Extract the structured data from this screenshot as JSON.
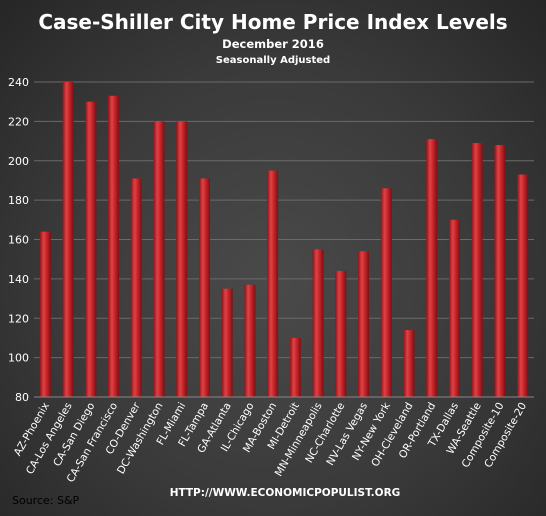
{
  "chart_data": {
    "type": "bar",
    "title": "Case-Shiller  City  Home  Price  Index  Levels",
    "subtitle": "December  2016",
    "subtitle2": "Seasonally  Adjusted",
    "xlabel": "",
    "ylabel": "",
    "ylim": [
      80,
      240
    ],
    "yticks": [
      80,
      100,
      120,
      140,
      160,
      180,
      200,
      220,
      240
    ],
    "grid": true,
    "legend": "none",
    "bar_color": "#c0262b",
    "categories": [
      "AZ-Phoenix",
      "CA-Los Angeles",
      "CA-San Diego",
      "CA-San Francisco",
      "CO-Denver",
      "DC-Washington",
      "FL-Miami",
      "FL-Tampa",
      "GA-Atlanta",
      "IL-Chicago",
      "MA-Boston",
      "MI-Detroit",
      "MN-Minneapolis",
      "NC-Charlotte",
      "NV-Las Vegas",
      "NY-New York",
      "OH-Cleveland",
      "OR-Portland",
      "TX-Dallas",
      "WA-Seattle",
      "Composite-10",
      "Composite-20"
    ],
    "values": [
      164,
      240,
      230,
      233,
      191,
      220,
      220,
      191,
      135,
      137,
      195,
      110,
      155,
      144,
      154,
      186,
      114,
      211,
      170,
      209,
      208,
      193
    ]
  },
  "footer": {
    "source": "Source:  S&P",
    "url": "HTTP://WWW.ECONOMICPOPULIST.ORG"
  }
}
